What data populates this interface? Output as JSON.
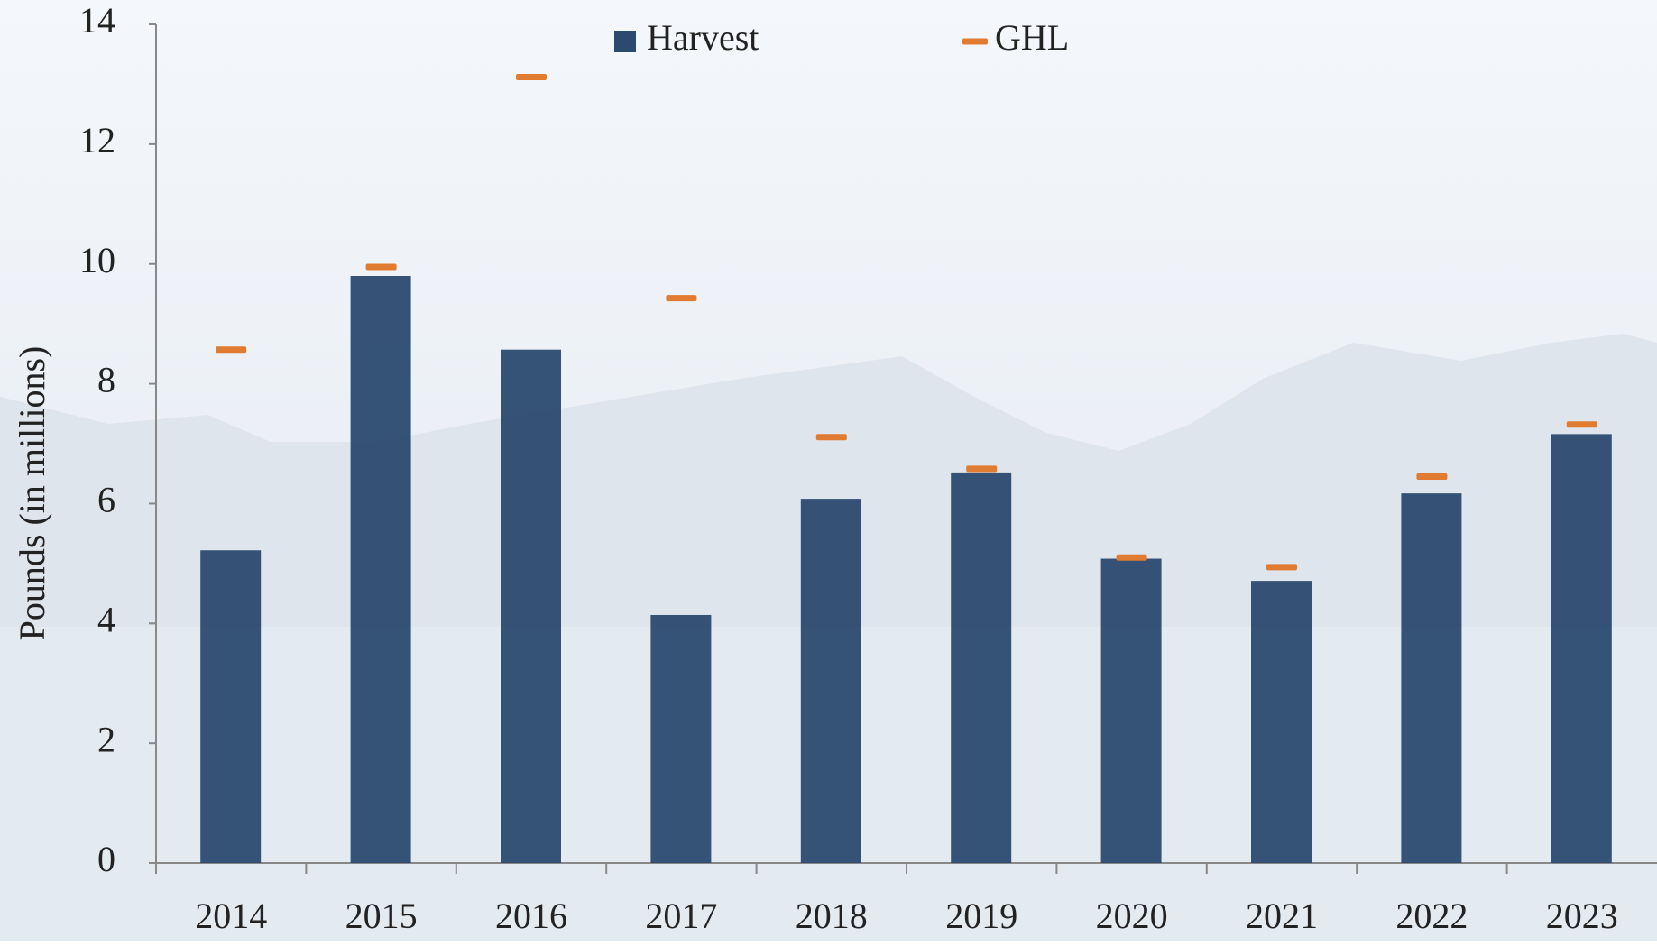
{
  "chart_data": {
    "type": "bar",
    "y_axis_label": "Pounds (in millions)",
    "categories": [
      "2014",
      "2015",
      "2016",
      "2017",
      "2018",
      "2019",
      "2020",
      "2021",
      "2022",
      "2023"
    ],
    "series": [
      {
        "name": "Harvest",
        "color": "#2b4a70",
        "values": [
          5.22,
          9.8,
          8.57,
          4.14,
          6.08,
          6.52,
          5.08,
          4.71,
          6.17,
          7.16
        ]
      },
      {
        "name": "GHL",
        "color": "#e07b30",
        "marker": "dash",
        "values": [
          8.57,
          9.95,
          13.12,
          9.43,
          7.11,
          6.58,
          5.1,
          4.94,
          6.45,
          7.32
        ]
      }
    ],
    "ylim": [
      0,
      14
    ],
    "yticks": [
      0,
      2,
      4,
      6,
      8,
      10,
      12,
      14
    ]
  }
}
